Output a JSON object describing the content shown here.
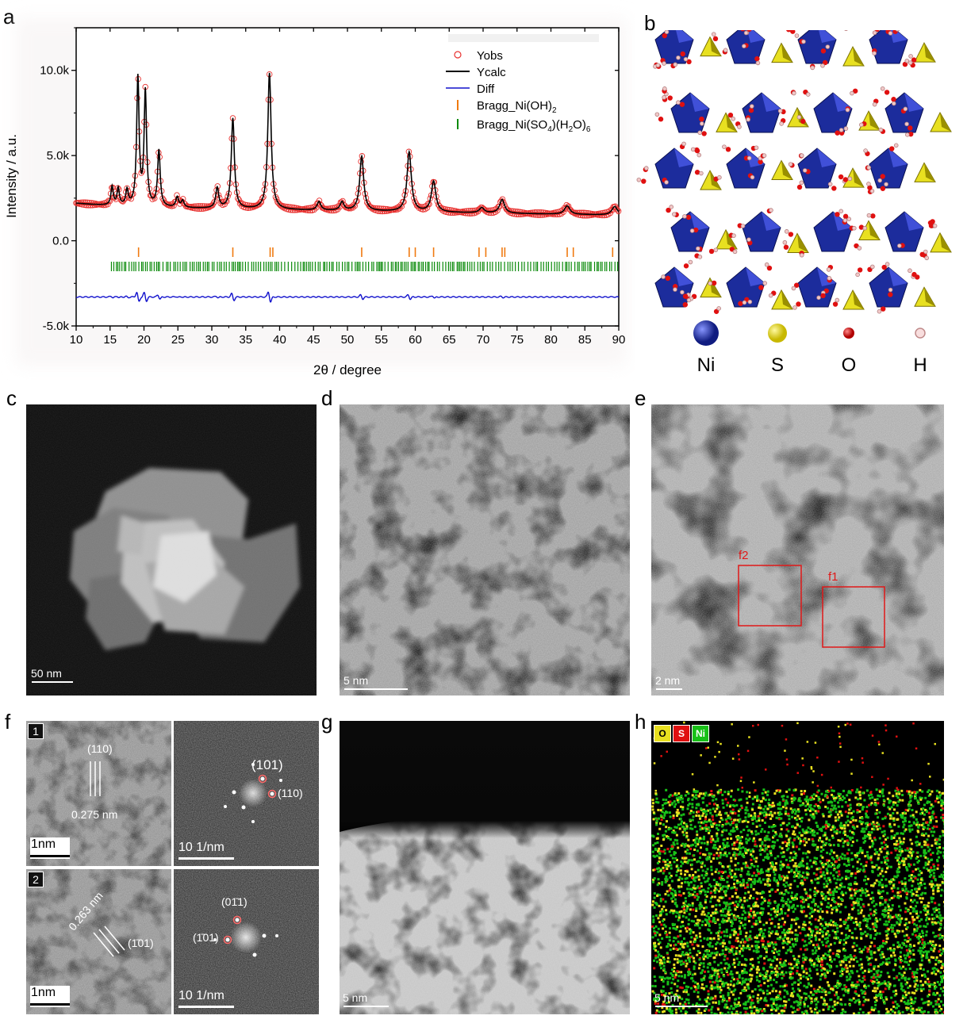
{
  "panels": {
    "a": "a",
    "b": "b",
    "c": "c",
    "d": "d",
    "e": "e",
    "f": "f",
    "g": "g",
    "h": "h"
  },
  "chart_data": {
    "type": "line",
    "xlabel": "2θ / degree",
    "ylabel": "Intensity / a.u.",
    "xlim": [
      10,
      90
    ],
    "ylim": [
      -5000,
      12500
    ],
    "xticks": [
      "10",
      "15",
      "20",
      "25",
      "30",
      "35",
      "40",
      "45",
      "50",
      "55",
      "60",
      "65",
      "70",
      "75",
      "80",
      "85",
      "90"
    ],
    "yticks": [
      {
        "v": 10000,
        "label": "10.0k"
      },
      {
        "v": 5000,
        "label": "5.0k"
      },
      {
        "v": 0,
        "label": "0.0"
      },
      {
        "v": -5000,
        "label": "-5.0k"
      }
    ],
    "legend": [
      "Yobs",
      "Ycalc",
      "Diff",
      "Bragg_Ni(OH)",
      "Bragg_Ni(SO",
      ")(H",
      "O)"
    ],
    "legend_sub": [
      "2",
      "4",
      "2",
      "6"
    ],
    "legend_position": "top-right",
    "baseline": 2000,
    "peaks": [
      {
        "x": 15.3,
        "y": 1100
      },
      {
        "x": 16.2,
        "y": 1000
      },
      {
        "x": 17.5,
        "y": 900
      },
      {
        "x": 19.1,
        "y": 7500
      },
      {
        "x": 20.2,
        "y": 6700
      },
      {
        "x": 22.2,
        "y": 3300
      },
      {
        "x": 24.9,
        "y": 600
      },
      {
        "x": 25.7,
        "y": 400
      },
      {
        "x": 30.8,
        "y": 1200
      },
      {
        "x": 33.1,
        "y": 5300
      },
      {
        "x": 38.5,
        "y": 8000
      },
      {
        "x": 45.8,
        "y": 500
      },
      {
        "x": 49.2,
        "y": 500
      },
      {
        "x": 52.1,
        "y": 3200
      },
      {
        "x": 59.1,
        "y": 3500
      },
      {
        "x": 62.7,
        "y": 1800
      },
      {
        "x": 69.8,
        "y": 300
      },
      {
        "x": 72.8,
        "y": 800
      },
      {
        "x": 82.4,
        "y": 500
      },
      {
        "x": 89.4,
        "y": 500
      }
    ],
    "bragg_nioh2": [
      19.2,
      33.1,
      38.6,
      39.0,
      52.1,
      59.1,
      60.0,
      62.7,
      69.4,
      70.4,
      72.8,
      73.2,
      82.4,
      83.3,
      89.1
    ],
    "bragg_niso4_range": [
      15,
      90
    ],
    "diff_offset": -3300,
    "colors": {
      "yobs": "#e8312f",
      "ycalc": "#000000",
      "diff": "#1010cc",
      "bragg1": "#f07a10",
      "bragg2": "#0a8a0a"
    }
  },
  "structure_legend": [
    {
      "name": "Ni",
      "color": "#1c2c9c"
    },
    {
      "name": "S",
      "color": "#e8e020"
    },
    {
      "name": "O",
      "color": "#e01010"
    },
    {
      "name": "H",
      "color": "#f2c8c8"
    }
  ],
  "scale_bars": {
    "c": "50 nm",
    "d": "5 nm",
    "e": "2 nm",
    "f1a": "1nm",
    "f1b": "10 1/nm",
    "f2a": "1nm",
    "f2b": "10 1/nm",
    "g": "5 nm",
    "h": "5 nm"
  },
  "roi_labels": {
    "f1": "f1",
    "f2": "f2"
  },
  "panel_f": {
    "row1": "1",
    "row2": "2",
    "d1": "0.275 nm",
    "plane1": "(110)",
    "fft1a": "(101)",
    "fft1b": "(110)",
    "d2": "0.263 nm",
    "plane2": "(1̄01)",
    "fft2a": "(01̄1)",
    "fft2b": "(1̄01)"
  },
  "eds_legend": [
    {
      "label": "O",
      "color": "#e8e020"
    },
    {
      "label": "S",
      "color": "#e01010"
    },
    {
      "label": "Ni",
      "color": "#18c018"
    }
  ]
}
